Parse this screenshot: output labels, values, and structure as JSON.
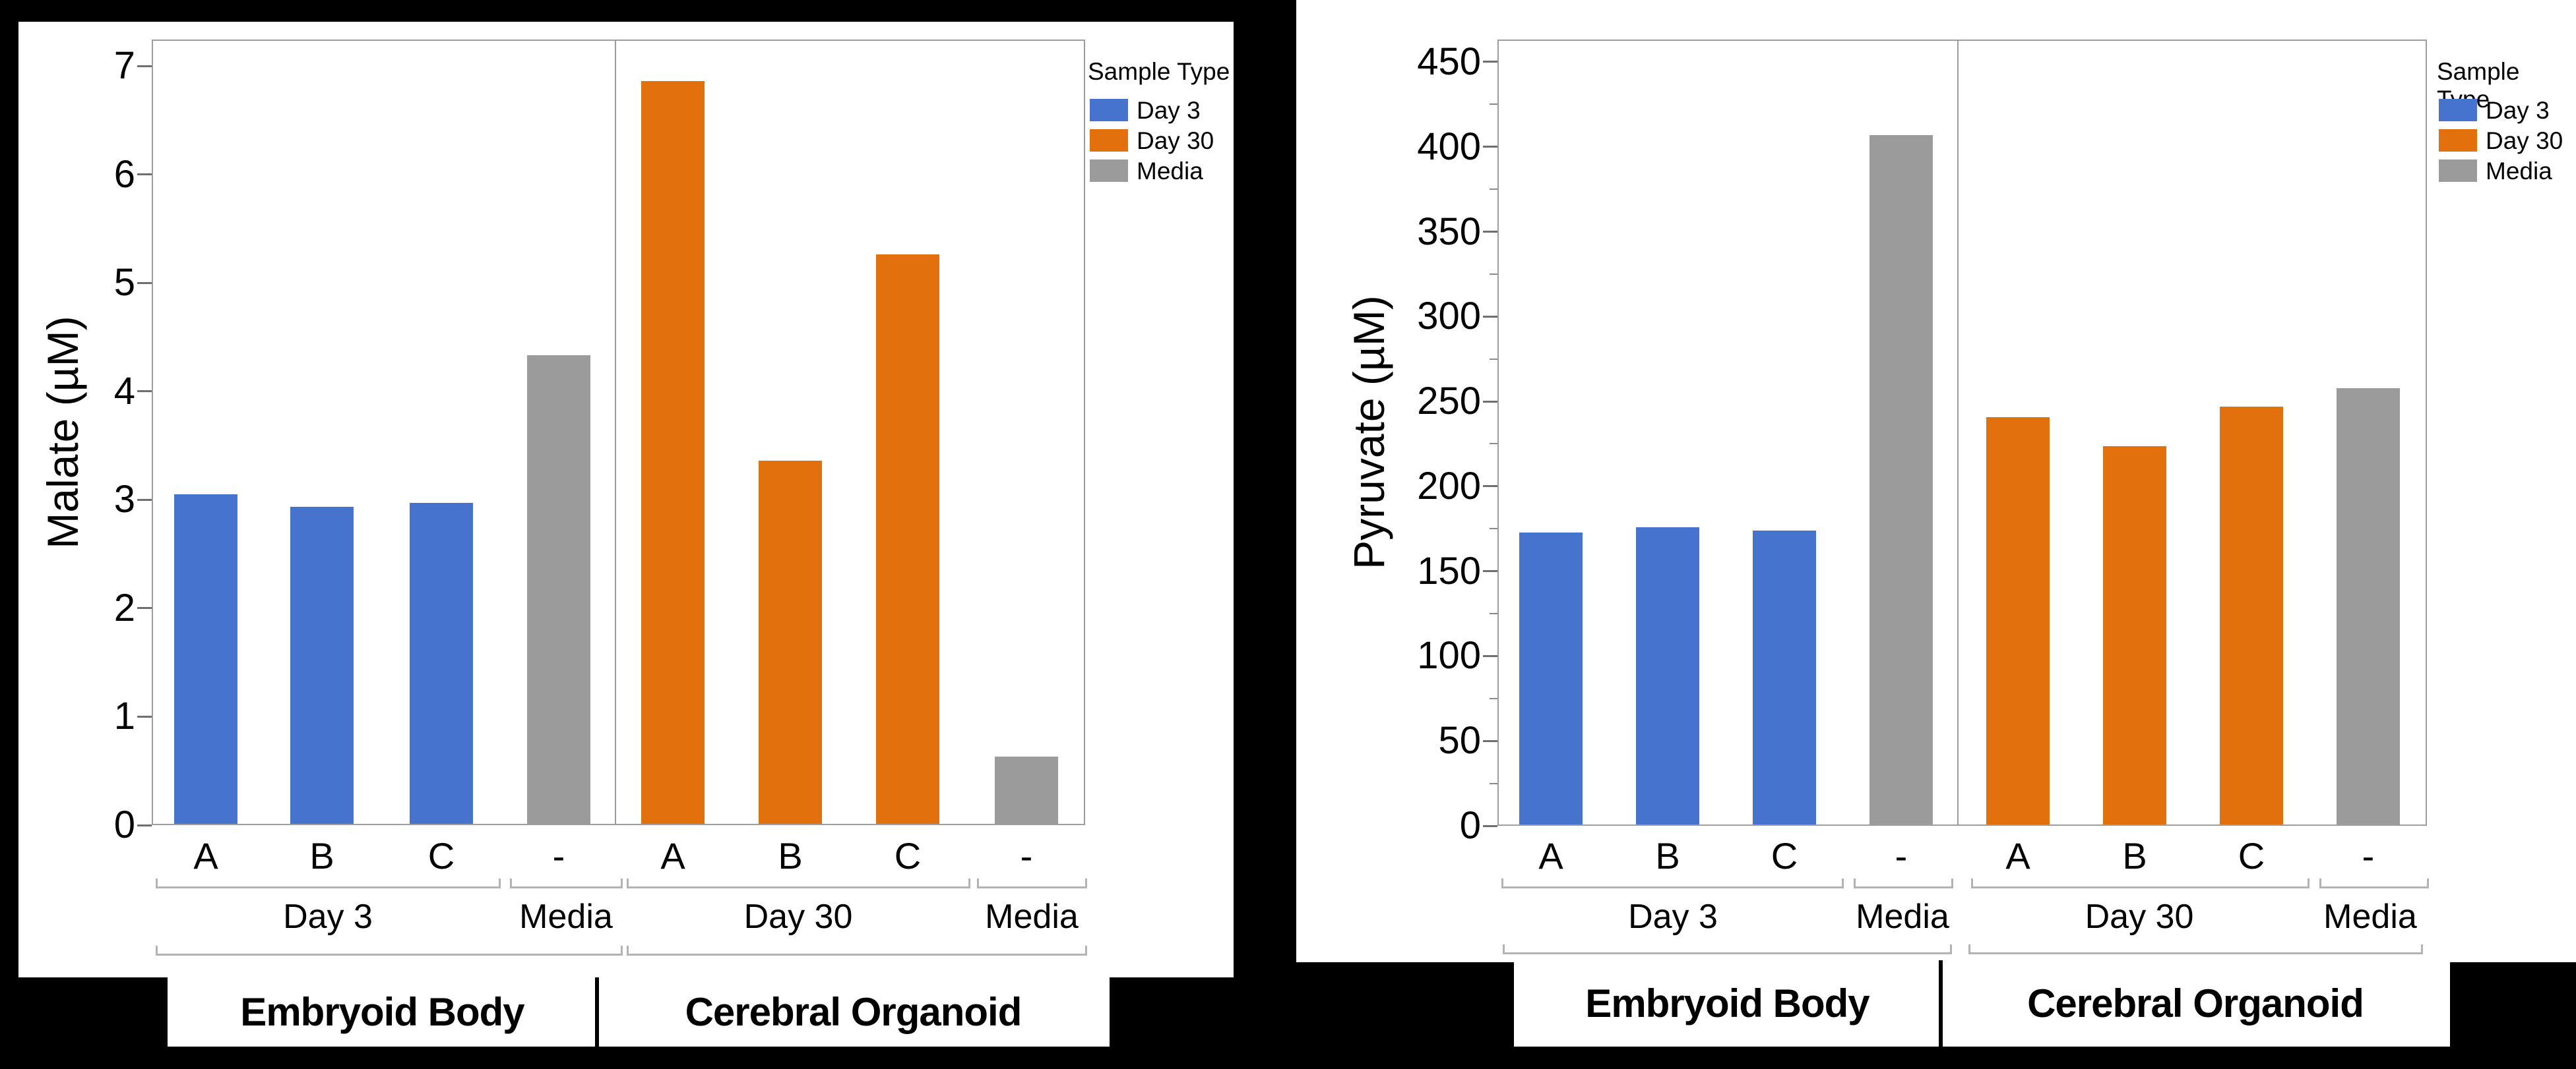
{
  "background": "#000000",
  "legend": {
    "title": "Sample Type",
    "position": "right",
    "entries": [
      {
        "label": "Day 3",
        "color": "#4673CE"
      },
      {
        "label": "Day 30",
        "color": "#E2700D"
      },
      {
        "label": "Media",
        "color": "#9B9B9B"
      }
    ]
  },
  "chart_data": [
    {
      "type": "bar",
      "title": "",
      "ylabel": "Malate (µM)",
      "xlabel": "",
      "ylim": [
        0,
        7
      ],
      "y_tick_step": 1,
      "y_minor_step": null,
      "grid": false,
      "legend_position": "right",
      "categories": [
        "A",
        "B",
        "C",
        "-",
        "A",
        "B",
        "C",
        "-"
      ],
      "bar_series": [
        "Day 3",
        "Day 3",
        "Day 3",
        "Media",
        "Day 30",
        "Day 30",
        "Day 30",
        "Media"
      ],
      "values": [
        3.04,
        2.92,
        2.96,
        4.32,
        6.85,
        3.35,
        5.25,
        0.62
      ],
      "group_labels": [
        "Day 3",
        "Media",
        "Day 30",
        "Media"
      ],
      "group_bar_spans": [
        [
          0,
          2
        ],
        [
          3,
          3
        ],
        [
          4,
          6
        ],
        [
          7,
          7
        ]
      ],
      "super_group_labels": [
        "Embryoid Body",
        "Cerebral Organoid"
      ],
      "super_group_spans": [
        [
          0,
          1
        ],
        [
          2,
          3
        ]
      ]
    },
    {
      "type": "bar",
      "title": "",
      "ylabel": "Pyruvate (µM)",
      "xlabel": "",
      "ylim": [
        0,
        450
      ],
      "y_tick_step": 50,
      "y_minor_step": 25,
      "grid": false,
      "legend_position": "right",
      "categories": [
        "A",
        "B",
        "C",
        "-",
        "A",
        "B",
        "C",
        "-"
      ],
      "bar_series": [
        "Day 3",
        "Day 3",
        "Day 3",
        "Media",
        "Day 30",
        "Day 30",
        "Day 30",
        "Media"
      ],
      "values": [
        172,
        175,
        173,
        406,
        240,
        223,
        246,
        257
      ],
      "group_labels": [
        "Day 3",
        "Media",
        "Day 30",
        "Media"
      ],
      "group_bar_spans": [
        [
          0,
          2
        ],
        [
          3,
          3
        ],
        [
          4,
          6
        ],
        [
          7,
          7
        ]
      ],
      "super_group_labels": [
        "Embryoid Body",
        "Cerebral Organoid"
      ],
      "super_group_spans": [
        [
          0,
          1
        ],
        [
          2,
          3
        ]
      ]
    }
  ]
}
